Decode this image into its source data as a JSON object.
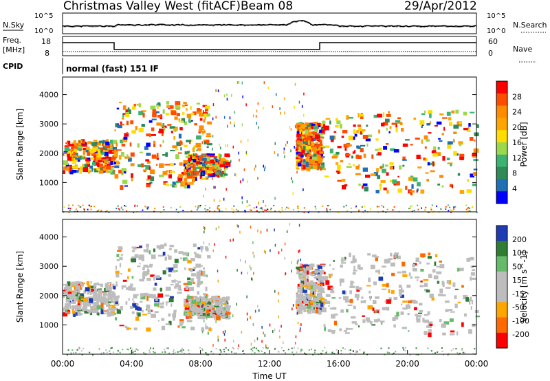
{
  "header": {
    "title": "Christmas Valley West (fitACF)",
    "beam": "Beam 08",
    "date": "29/Apr/2012"
  },
  "noise_panel": {
    "left_label": "N.Sky",
    "right_label": "N.Search",
    "left_ticks": [
      "10^5",
      "10^0"
    ],
    "right_ticks": [
      "10^5",
      "10^0"
    ]
  },
  "freq_panel": {
    "left_label_line1": "Freq.",
    "left_label_line2": "[MHz]",
    "right_label": "Nave",
    "left_ticks": [
      "18",
      "8"
    ],
    "right_ticks": [
      "60",
      "0"
    ]
  },
  "cpid_panel": {
    "label": "CPID",
    "text": "normal (fast) 151 IF"
  },
  "chart_data": [
    {
      "type": "heatmap",
      "name": "power",
      "ylabel": "Slant Range [km]",
      "yticks": [
        1000,
        2000,
        3000,
        4000
      ],
      "ylim": [
        0,
        4600
      ],
      "xlim": [
        0,
        24
      ],
      "colorbar": {
        "label": "Power [dB]",
        "ticks": [
          "28",
          "24",
          "20",
          "16",
          "12",
          "8",
          "4"
        ],
        "colors": [
          "#ff0000",
          "#ff4d00",
          "#ff8c00",
          "#ffa500",
          "#ffdd00",
          "#9bd94c",
          "#3cb371",
          "#2e8b57",
          "#1e6fb8",
          "#0000ff"
        ]
      },
      "echo_regions": [
        {
          "t0": 0.0,
          "t1": 3.0,
          "r0": 1400,
          "r1": 2500
        },
        {
          "t0": 3.0,
          "t1": 8.5,
          "r0": 900,
          "r1": 3800
        },
        {
          "t0": 7.0,
          "t1": 9.5,
          "r0": 1300,
          "r1": 2000
        },
        {
          "t0": 13.5,
          "t1": 15.0,
          "r0": 1500,
          "r1": 3100
        },
        {
          "t0": 15.0,
          "t1": 24.0,
          "r0": 700,
          "r1": 3500
        }
      ]
    },
    {
      "type": "heatmap",
      "name": "velocity",
      "ylabel": "Slant Range [km]",
      "xlabel": "Time UT",
      "yticks": [
        1000,
        2000,
        3000,
        4000
      ],
      "ylim": [
        0,
        4600
      ],
      "xlim": [
        0,
        24
      ],
      "xticklabels": [
        "00:00",
        "04:00",
        "08:00",
        "12:00",
        "16:00",
        "20:00",
        "00:00"
      ],
      "colorbar": {
        "label": "Velocity [m s^-1]",
        "ticks": [
          "200",
          "100",
          "50",
          "15",
          "-15",
          "-50",
          "-100",
          "-200"
        ],
        "colors": [
          "#1f3bb3",
          "#2e7d32",
          "#66bb6a",
          "#bdbdbd",
          "#bdbdbd",
          "#ffa500",
          "#ff6a00",
          "#ff0000"
        ]
      },
      "echo_regions": [
        {
          "t0": 0.0,
          "t1": 3.0,
          "r0": 1400,
          "r1": 2500
        },
        {
          "t0": 3.0,
          "t1": 8.5,
          "r0": 900,
          "r1": 3800
        },
        {
          "t0": 7.0,
          "t1": 9.5,
          "r0": 1300,
          "r1": 2000
        },
        {
          "t0": 13.5,
          "t1": 15.0,
          "r0": 1500,
          "r1": 3100
        },
        {
          "t0": 15.0,
          "t1": 24.0,
          "r0": 700,
          "r1": 3500
        }
      ]
    }
  ]
}
